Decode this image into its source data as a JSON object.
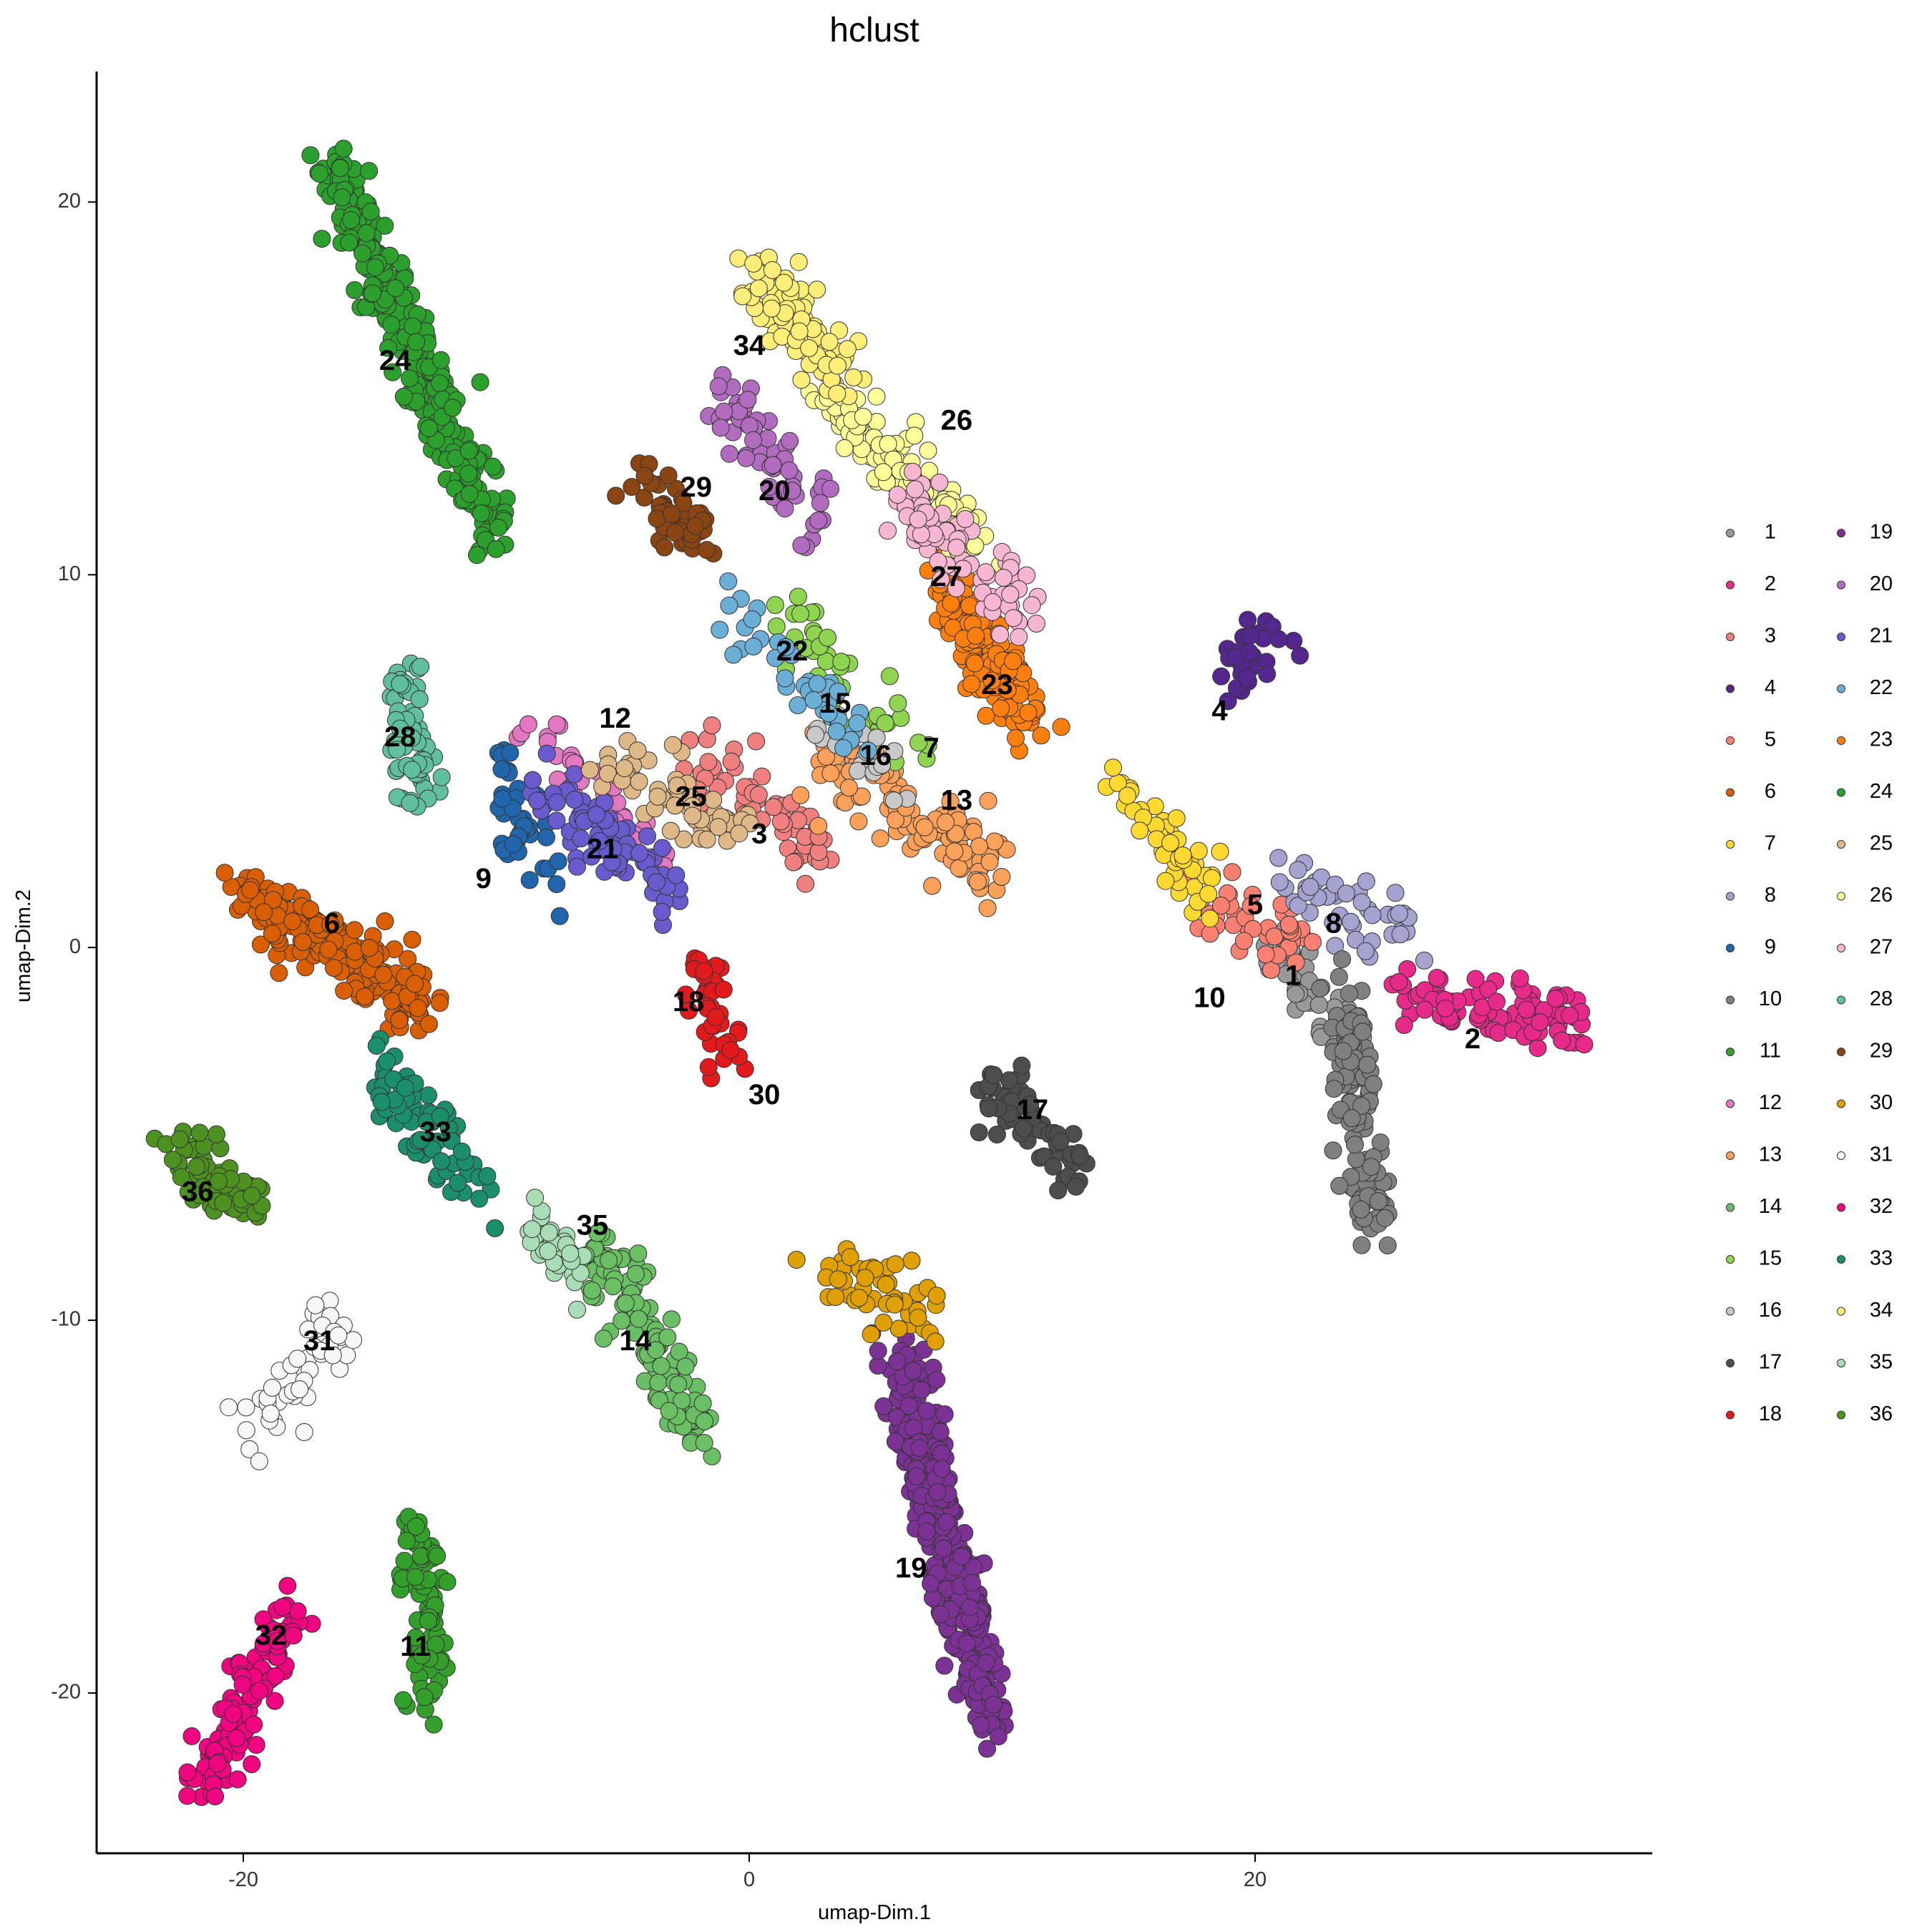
{
  "chart_data": {
    "type": "scatter",
    "title": "hclust",
    "xlabel": "umap-Dim.1",
    "ylabel": "umap-Dim.2",
    "xlim": [
      -25.8,
      35.7
    ],
    "ylim": [
      -24.3,
      23.5
    ],
    "x_ticks": [
      -20,
      0,
      20
    ],
    "y_ticks": [
      -20,
      -10,
      0,
      10,
      20
    ],
    "x_tick_labels": [
      "-20",
      "0",
      "20"
    ],
    "y_tick_labels": [
      "-20",
      "-10",
      "0",
      "10",
      "20"
    ],
    "grid": false,
    "legend_position": "right",
    "legend_columns": 2,
    "clusters": [
      {
        "name": "1",
        "color": "#999999",
        "label_xy": [
          21.5,
          -0.8
        ],
        "extent": [
          [
            20,
            0.5
          ],
          [
            24,
            -2.5
          ]
        ],
        "n": 40
      },
      {
        "name": "2",
        "color": "#E7298A",
        "label_xy": [
          28.6,
          -2.5
        ],
        "extent": [
          [
            25.5,
            -1
          ],
          [
            33,
            -2.2
          ]
        ],
        "n": 90
      },
      {
        "name": "3",
        "color": "#F08080",
        "label_xy": [
          0.4,
          3.0
        ],
        "extent": [
          [
            -2,
            5
          ],
          [
            3,
            2.5
          ]
        ],
        "n": 60
      },
      {
        "name": "4",
        "color": "#54278F",
        "label_xy": [
          18.6,
          6.3
        ],
        "extent": [
          [
            19,
            7
          ],
          [
            21,
            8.5
          ]
        ],
        "n": 30
      },
      {
        "name": "5",
        "color": "#FB8072",
        "label_xy": [
          20.0,
          1.1
        ],
        "extent": [
          [
            18,
            1.5
          ],
          [
            22,
            0
          ]
        ],
        "n": 40
      },
      {
        "name": "6",
        "color": "#D95F02",
        "label_xy": [
          -16.5,
          0.6
        ],
        "extent": [
          [
            -20,
            1.5
          ],
          [
            -13,
            -1.5
          ]
        ],
        "n": 200
      },
      {
        "name": "7",
        "color": "#FFD92F",
        "label_xy": [
          7.2,
          5.3
        ],
        "extent": [
          [
            14.5,
            4.5
          ],
          [
            18,
            1.5
          ]
        ],
        "n": 50
      },
      {
        "name": "8",
        "color": "#A6A2D0",
        "label_xy": [
          23.1,
          0.6
        ],
        "extent": [
          [
            21,
            2
          ],
          [
            26,
            0.5
          ]
        ],
        "n": 45
      },
      {
        "name": "9",
        "color": "#2166AC",
        "label_xy": [
          -10.5,
          1.8
        ],
        "extent": [
          [
            -10,
            5
          ],
          [
            -8,
            2
          ]
        ],
        "n": 40
      },
      {
        "name": "10",
        "color": "#808080",
        "label_xy": [
          18.2,
          -1.4
        ],
        "extent": [
          [
            23.5,
            -1
          ],
          [
            24.5,
            -7.5
          ]
        ],
        "n": 120
      },
      {
        "name": "11",
        "color": "#33A02C",
        "label_xy": [
          -13.2,
          -18.8
        ],
        "extent": [
          [
            -13.2,
            -15.5
          ],
          [
            -12.5,
            -20
          ]
        ],
        "n": 80
      },
      {
        "name": "12",
        "color": "#E377C2",
        "label_xy": [
          -5.3,
          6.1
        ],
        "extent": [
          [
            -9,
            6
          ],
          [
            -3,
            2
          ]
        ],
        "n": 40
      },
      {
        "name": "13",
        "color": "#FDA05A",
        "label_xy": [
          8.2,
          3.9
        ],
        "extent": [
          [
            3,
            5
          ],
          [
            10,
            2
          ]
        ],
        "n": 110
      },
      {
        "name": "14",
        "color": "#6ABE63",
        "label_xy": [
          -4.5,
          -10.6
        ],
        "extent": [
          [
            -6,
            -8
          ],
          [
            -2,
            -13
          ]
        ],
        "n": 130
      },
      {
        "name": "15",
        "color": "#8ED450",
        "label_xy": [
          3.4,
          6.5
        ],
        "extent": [
          [
            1,
            9
          ],
          [
            7,
            5
          ]
        ],
        "n": 40
      },
      {
        "name": "16",
        "color": "#C8C8C8",
        "label_xy": [
          5.0,
          5.1
        ],
        "extent": [
          [
            3,
            6
          ],
          [
            7,
            4
          ]
        ],
        "n": 20
      },
      {
        "name": "17",
        "color": "#4D4D4D",
        "label_xy": [
          11.2,
          -4.4
        ],
        "extent": [
          [
            9,
            -3.5
          ],
          [
            13,
            -6
          ]
        ],
        "n": 60
      },
      {
        "name": "18",
        "color": "#E31A1C",
        "label_xy": [
          -2.4,
          -1.5
        ],
        "extent": [
          [
            -2,
            -0.5
          ],
          [
            -1,
            -3
          ]
        ],
        "n": 40
      },
      {
        "name": "19",
        "color": "#7B3294",
        "label_xy": [
          6.4,
          -16.7
        ],
        "extent": [
          [
            6,
            -11
          ],
          [
            9.5,
            -20.5
          ]
        ],
        "n": 380
      },
      {
        "name": "20",
        "color": "#B26CBF",
        "label_xy": [
          1.0,
          12.2
        ],
        "extent": [
          [
            -1,
            15
          ],
          [
            3,
            11
          ]
        ],
        "n": 60
      },
      {
        "name": "21",
        "color": "#6A5ACD",
        "label_xy": [
          -5.8,
          2.6
        ],
        "extent": [
          [
            -8,
            4
          ],
          [
            -3,
            1.5
          ]
        ],
        "n": 80
      },
      {
        "name": "22",
        "color": "#6BAED6",
        "label_xy": [
          1.7,
          7.9
        ],
        "extent": [
          [
            -1,
            9
          ],
          [
            4,
            6
          ]
        ],
        "n": 40
      },
      {
        "name": "23",
        "color": "#FF7F0E",
        "label_xy": [
          9.8,
          7.0
        ],
        "extent": [
          [
            7.5,
            10
          ],
          [
            11,
            6
          ]
        ],
        "n": 170
      },
      {
        "name": "24",
        "color": "#2CA02C",
        "label_xy": [
          -14.0,
          15.7
        ],
        "extent": [
          [
            -16.5,
            21
          ],
          [
            -10,
            11
          ]
        ],
        "n": 270
      },
      {
        "name": "25",
        "color": "#DEB887",
        "label_xy": [
          -2.3,
          4.0
        ],
        "extent": [
          [
            -6,
            5
          ],
          [
            0,
            3
          ]
        ],
        "n": 60
      },
      {
        "name": "26",
        "color": "#FFFF99",
        "label_xy": [
          8.2,
          14.1
        ],
        "extent": [
          [
            3,
            15
          ],
          [
            9,
            11
          ]
        ],
        "n": 110
      },
      {
        "name": "27",
        "color": "#F7B6D2",
        "label_xy": [
          7.8,
          9.9
        ],
        "extent": [
          [
            6,
            12
          ],
          [
            11,
            9
          ]
        ],
        "n": 80
      },
      {
        "name": "28",
        "color": "#5FBF9F",
        "label_xy": [
          -13.8,
          5.6
        ],
        "extent": [
          [
            -14,
            7.5
          ],
          [
            -13,
            4
          ]
        ],
        "n": 60
      },
      {
        "name": "29",
        "color": "#8B4513",
        "label_xy": [
          -2.1,
          12.3
        ],
        "extent": [
          [
            -4,
            12
          ],
          [
            -2,
            11
          ]
        ],
        "n": 50
      },
      {
        "name": "30",
        "color": "#E0A100",
        "label_xy": [
          0.6,
          -4.0
        ],
        "extent": [
          [
            3,
            -8.5
          ],
          [
            7,
            -10
          ]
        ],
        "n": 50
      },
      {
        "name": "31",
        "color": "#F7F7F7",
        "label_xy": [
          -17.0,
          -10.6
        ],
        "extent": [
          [
            -16,
            -10
          ],
          [
            -19.5,
            -12.7
          ]
        ],
        "n": 50
      },
      {
        "name": "32",
        "color": "#F0047F",
        "label_xy": [
          -18.9,
          -18.5
        ],
        "extent": [
          [
            -18,
            -17.5
          ],
          [
            -21.5,
            -22.5
          ]
        ],
        "n": 120
      },
      {
        "name": "33",
        "color": "#1B8F6A",
        "label_xy": [
          -12.4,
          -5.0
        ],
        "extent": [
          [
            -15,
            -3
          ],
          [
            -10.5,
            -7
          ]
        ],
        "n": 70
      },
      {
        "name": "34",
        "color": "#FFEE77",
        "label_xy": [
          0.0,
          16.1
        ],
        "extent": [
          [
            0,
            18
          ],
          [
            4,
            15.5
          ]
        ],
        "n": 100
      },
      {
        "name": "35",
        "color": "#A8DDB5",
        "label_xy": [
          -6.2,
          -7.5
        ],
        "extent": [
          [
            -8.5,
            -7.8
          ],
          [
            -6.5,
            -8.5
          ]
        ],
        "n": 30
      },
      {
        "name": "36",
        "color": "#4D9221",
        "label_xy": [
          -21.8,
          -6.6
        ],
        "extent": [
          [
            -22.5,
            -5.5
          ],
          [
            -19.5,
            -6.8
          ]
        ],
        "n": 60
      }
    ]
  }
}
